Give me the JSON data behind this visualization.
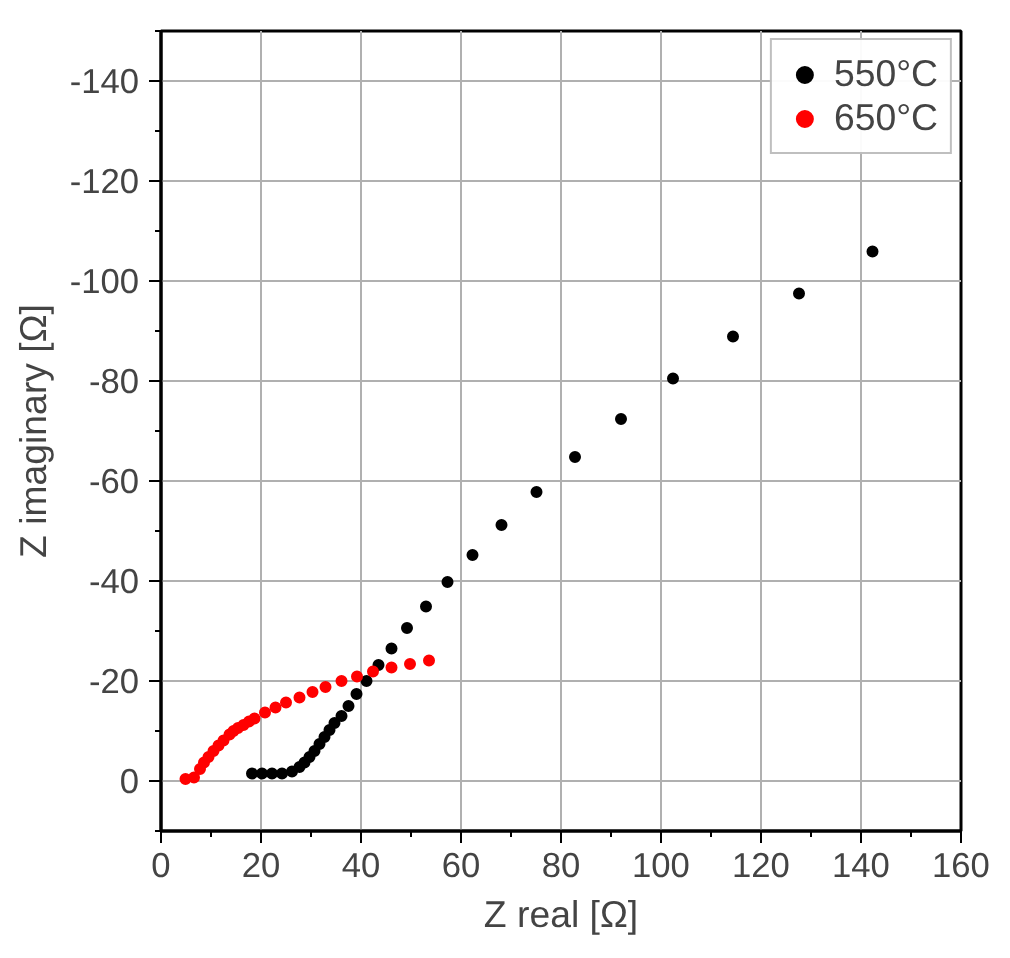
{
  "chart_data": {
    "type": "scatter",
    "xlabel": "Z real [Ω]",
    "ylabel": "Z imaginary [Ω]",
    "xlim": [
      0,
      160
    ],
    "ylim": [
      10,
      -150
    ],
    "xticks": [
      0,
      20,
      40,
      60,
      80,
      100,
      120,
      140,
      160
    ],
    "yticks": [
      -140,
      -120,
      -100,
      -80,
      -60,
      -40,
      -20,
      0
    ],
    "grid": true,
    "legend": "top right",
    "marker": "circle",
    "series": [
      {
        "name": "550°C",
        "color": "#000000",
        "x": [
          18.2,
          20.2,
          22.2,
          24.2,
          26.2,
          27.7,
          28.7,
          29.7,
          30.7,
          31.7,
          32.7,
          33.7,
          34.7,
          36.1,
          37.5,
          39.1,
          41.1,
          43.5,
          46.1,
          49.2,
          53.0,
          57.3,
          62.3,
          68.1,
          75.1,
          82.8,
          92.0,
          102.4,
          114.4,
          127.6,
          142.3
        ],
        "values": [
          -1.5,
          -1.5,
          -1.5,
          -1.5,
          -1.9,
          -2.8,
          -3.7,
          -4.8,
          -6.0,
          -7.4,
          -8.8,
          -10.2,
          -11.6,
          -13.0,
          -15.0,
          -17.4,
          -20.0,
          -23.2,
          -26.5,
          -30.6,
          -34.9,
          -39.8,
          -45.2,
          -51.2,
          -57.8,
          -64.8,
          -72.4,
          -80.5,
          -88.9,
          -97.5,
          -105.9
        ]
      },
      {
        "name": "650°C",
        "color": "#ff0000",
        "x": [
          4.9,
          6.6,
          7.8,
          8.6,
          9.5,
          10.5,
          11.5,
          12.5,
          13.7,
          14.5,
          15.4,
          16.5,
          17.6,
          18.7,
          20.8,
          22.9,
          25.0,
          27.7,
          30.3,
          32.9,
          36.1,
          39.2,
          42.4,
          46.1,
          49.8,
          53.6
        ],
        "values": [
          -0.4,
          -0.7,
          -2.4,
          -3.7,
          -4.8,
          -6.0,
          -7.1,
          -8.1,
          -9.3,
          -10.0,
          -10.6,
          -11.2,
          -11.9,
          -12.5,
          -13.7,
          -14.7,
          -15.7,
          -16.7,
          -17.8,
          -18.8,
          -20.0,
          -20.9,
          -21.9,
          -22.7,
          -23.4,
          -24.1
        ]
      }
    ]
  }
}
